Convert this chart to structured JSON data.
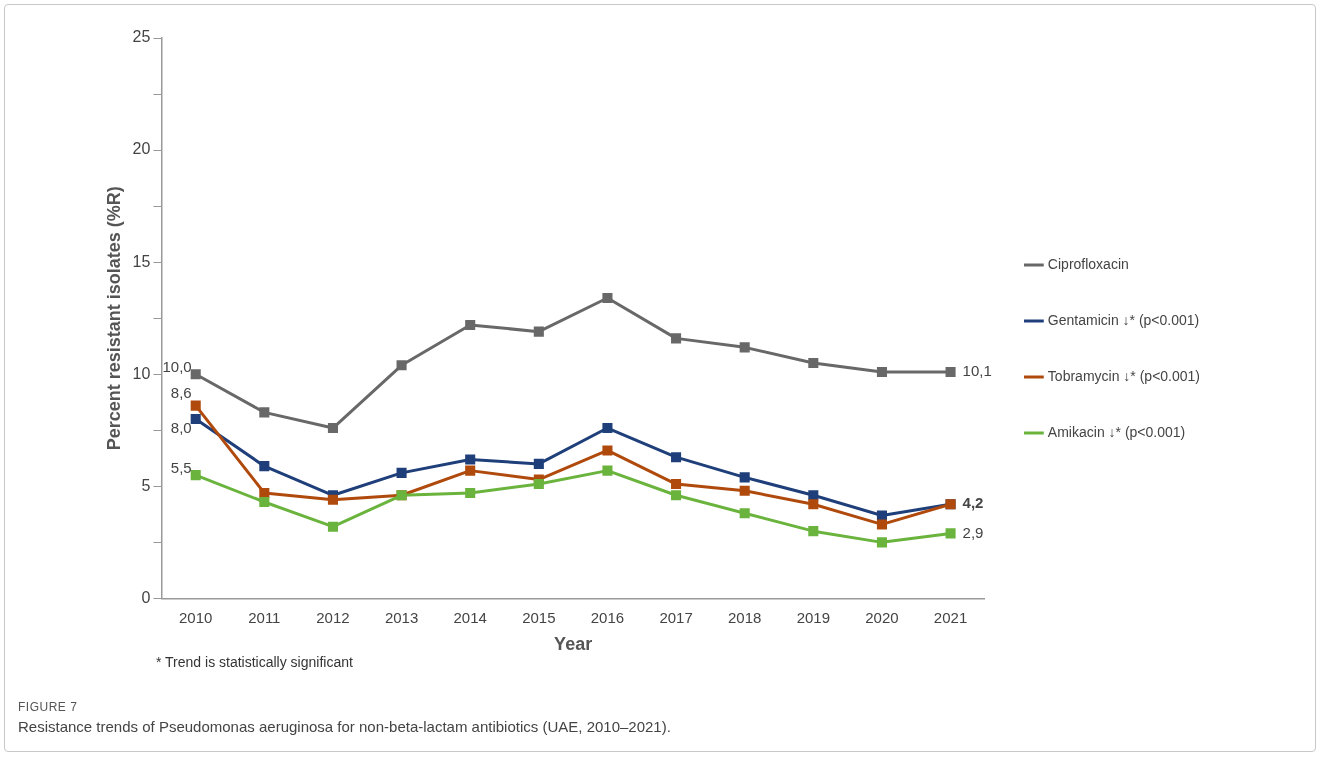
{
  "chart_data": {
    "type": "line",
    "xlabel": "Year",
    "ylabel": "Percent resistant isolates (%R)",
    "categories": [
      "2010",
      "2011",
      "2012",
      "2013",
      "2014",
      "2015",
      "2016",
      "2017",
      "2018",
      "2019",
      "2020",
      "2021"
    ],
    "series": [
      {
        "name": "Ciprofloxacin",
        "color": "#686868",
        "values": [
          10.0,
          8.3,
          7.6,
          10.4,
          12.2,
          11.9,
          13.4,
          11.6,
          11.2,
          10.5,
          10.1,
          10.1
        ],
        "value_labels": [
          "10,0",
          null,
          null,
          null,
          null,
          null,
          null,
          null,
          null,
          null,
          null,
          "10,1"
        ]
      },
      {
        "name": "Gentamicin ↓* (p<0.001)",
        "color": "#1f3f7a",
        "values": [
          8.0,
          5.9,
          4.6,
          5.6,
          6.2,
          6.0,
          7.6,
          6.3,
          5.4,
          4.6,
          3.7,
          4.2
        ],
        "value_labels": [
          "8,0",
          null,
          null,
          null,
          null,
          null,
          null,
          null,
          null,
          null,
          null,
          null
        ]
      },
      {
        "name": "Tobramycin ↓* (p<0.001)",
        "color": "#b04a0c",
        "values": [
          8.6,
          4.7,
          4.4,
          4.6,
          5.7,
          5.3,
          6.6,
          5.1,
          4.8,
          4.2,
          3.3,
          4.2
        ],
        "value_labels": [
          "8,6",
          null,
          null,
          null,
          null,
          null,
          null,
          null,
          null,
          null,
          null,
          "4,2"
        ]
      },
      {
        "name": "Amikacin ↓* (p<0.001)",
        "color": "#6ab43e",
        "values": [
          5.5,
          4.3,
          3.2,
          4.6,
          4.7,
          5.1,
          5.7,
          4.6,
          3.8,
          3.0,
          2.5,
          2.9
        ],
        "value_labels": [
          "5,5",
          null,
          null,
          null,
          null,
          null,
          null,
          null,
          null,
          null,
          null,
          "2,9"
        ]
      }
    ],
    "ylim": [
      0,
      25
    ],
    "yticks": [
      0,
      {
        "value": 2.5,
        "label": null
      },
      5,
      {
        "value": 7.5,
        "label": null
      },
      10,
      {
        "value": 12.5,
        "label": null
      },
      15,
      {
        "value": 17.5,
        "label": null
      },
      20,
      {
        "value": 22.5,
        "label": null
      },
      25
    ],
    "grid": false,
    "legend": "right",
    "marker": "square",
    "line_style": "solid",
    "annotations": [
      "* Trend is statistically significant",
      "FIGURE 7",
      "Resistance trends of Pseudomonas aeruginosa for non-beta-lactam antibiotics (UAE, 2010–2021)."
    ]
  }
}
